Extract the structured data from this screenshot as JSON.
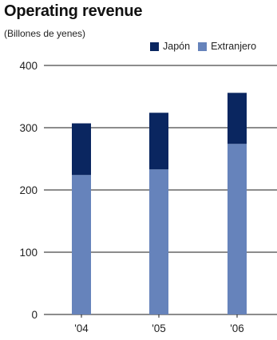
{
  "chart_data": {
    "type": "bar",
    "stacked": true,
    "title": "Operating revenue",
    "subtitle": "(Billones de yenes)",
    "categories": [
      "'04",
      "'05",
      "'06"
    ],
    "series": [
      {
        "name": "Extranjero",
        "values": [
          224,
          233,
          274
        ],
        "color": "#6683bb"
      },
      {
        "name": "Japón",
        "values": [
          83,
          91,
          82
        ],
        "color": "#0a2660"
      }
    ],
    "legend_order": [
      "Japón",
      "Extranjero"
    ],
    "legend_position": "top-right",
    "ylim": [
      0,
      400
    ],
    "yticks": [
      0,
      100,
      200,
      300,
      400
    ],
    "grid": true
  }
}
